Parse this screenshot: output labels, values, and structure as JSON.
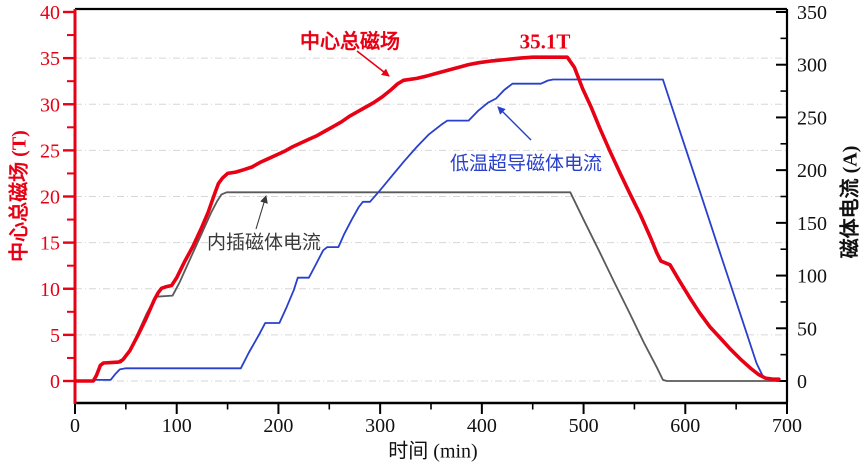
{
  "chart_data": {
    "type": "line",
    "title": "",
    "xlabel": "时间 (min)",
    "ylabel_left": "中心总磁场 (T)",
    "ylabel_right": "磁体电流 (A)",
    "x_range": [
      0,
      700
    ],
    "y_left_range": [
      0,
      40
    ],
    "y_right_range": [
      0,
      350
    ],
    "x_ticks": [
      0,
      100,
      200,
      300,
      400,
      500,
      600,
      700
    ],
    "x_minor_ticks": [
      50,
      150,
      250,
      350,
      450,
      550,
      650
    ],
    "y_left_ticks": [
      0,
      5,
      10,
      15,
      20,
      25,
      30,
      35,
      40
    ],
    "y_left_minor_ticks": [
      2.5,
      7.5,
      12.5,
      17.5,
      22.5,
      27.5,
      32.5,
      37.5
    ],
    "y_right_ticks": [
      0,
      50,
      100,
      150,
      200,
      250,
      300,
      350
    ],
    "y_right_minor_ticks": [
      25,
      75,
      125,
      175,
      225,
      275,
      325
    ],
    "grid": "horizontal dash-dot, light gray, at left-axis majors 0-35",
    "legend_position": "none (inline text annotations with arrows)",
    "series": [
      {
        "name": "内插磁体电流",
        "axis": "right",
        "color": "#5a5a5a",
        "width": 1.8,
        "points": [
          [
            0,
            0
          ],
          [
            18,
            0
          ],
          [
            21,
            5
          ],
          [
            24,
            14
          ],
          [
            27,
            17.5
          ],
          [
            45,
            17.5
          ],
          [
            49,
            21
          ],
          [
            55,
            31
          ],
          [
            62,
            46
          ],
          [
            70,
            63
          ],
          [
            76,
            74
          ],
          [
            80,
            80
          ],
          [
            96,
            81
          ],
          [
            103,
            94
          ],
          [
            110,
            109
          ],
          [
            118,
            126
          ],
          [
            126,
            143
          ],
          [
            134,
            160
          ],
          [
            140,
            171
          ],
          [
            144,
            177
          ],
          [
            149,
            179
          ],
          [
            487,
            179
          ],
          [
            500,
            153
          ],
          [
            515,
            124
          ],
          [
            530,
            94
          ],
          [
            545,
            65
          ],
          [
            560,
            35
          ],
          [
            572,
            13
          ],
          [
            578,
            1
          ],
          [
            582,
            0
          ],
          [
            692,
            0
          ]
        ]
      },
      {
        "name": "低温超导磁体电流",
        "axis": "right",
        "color": "#2840cc",
        "width": 1.8,
        "points": [
          [
            0,
            0
          ],
          [
            18,
            0
          ],
          [
            20,
            1
          ],
          [
            35,
            1
          ],
          [
            40,
            7
          ],
          [
            44,
            11
          ],
          [
            50,
            12
          ],
          [
            163,
            12
          ],
          [
            171,
            27
          ],
          [
            181,
            44
          ],
          [
            187,
            55
          ],
          [
            201,
            55
          ],
          [
            208,
            70
          ],
          [
            215,
            86
          ],
          [
            219,
            98
          ],
          [
            230,
            98
          ],
          [
            237,
            111
          ],
          [
            244,
            124
          ],
          [
            248,
            127
          ],
          [
            259,
            127
          ],
          [
            265,
            140
          ],
          [
            272,
            153
          ],
          [
            279,
            165
          ],
          [
            283,
            170
          ],
          [
            290,
            170
          ],
          [
            300,
            181
          ],
          [
            312,
            195
          ],
          [
            324,
            209
          ],
          [
            336,
            222
          ],
          [
            348,
            234
          ],
          [
            360,
            243
          ],
          [
            366,
            247
          ],
          [
            387,
            247
          ],
          [
            396,
            256
          ],
          [
            406,
            264
          ],
          [
            414,
            268
          ],
          [
            422,
            276
          ],
          [
            430,
            282
          ],
          [
            458,
            282
          ],
          [
            465,
            285
          ],
          [
            470,
            286
          ],
          [
            578,
            286
          ],
          [
            595,
            236
          ],
          [
            615,
            178
          ],
          [
            635,
            119
          ],
          [
            655,
            61
          ],
          [
            670,
            17
          ],
          [
            677,
            3
          ],
          [
            684,
            1
          ],
          [
            692,
            1
          ]
        ]
      },
      {
        "name": "中心总磁场",
        "axis": "left",
        "color": "#e80014",
        "width": 3.6,
        "points": [
          [
            0,
            0
          ],
          [
            18,
            0
          ],
          [
            21,
            0.6
          ],
          [
            25,
            1.7
          ],
          [
            28,
            1.95
          ],
          [
            43,
            2.05
          ],
          [
            47,
            2.3
          ],
          [
            54,
            3.3
          ],
          [
            62,
            5.0
          ],
          [
            70,
            6.8
          ],
          [
            78,
            8.8
          ],
          [
            82,
            9.6
          ],
          [
            85,
            10.05
          ],
          [
            89,
            10.2
          ],
          [
            95,
            10.35
          ],
          [
            100,
            11.2
          ],
          [
            108,
            13.0
          ],
          [
            116,
            14.6
          ],
          [
            124,
            16.5
          ],
          [
            131,
            18.3
          ],
          [
            137,
            20.2
          ],
          [
            141,
            21.4
          ],
          [
            145,
            22.0
          ],
          [
            150,
            22.5
          ],
          [
            158,
            22.65
          ],
          [
            166,
            22.9
          ],
          [
            174,
            23.2
          ],
          [
            182,
            23.7
          ],
          [
            190,
            24.1
          ],
          [
            198,
            24.5
          ],
          [
            206,
            24.9
          ],
          [
            214,
            25.4
          ],
          [
            222,
            25.8
          ],
          [
            230,
            26.2
          ],
          [
            238,
            26.6
          ],
          [
            246,
            27.1
          ],
          [
            254,
            27.6
          ],
          [
            262,
            28.1
          ],
          [
            270,
            28.7
          ],
          [
            278,
            29.2
          ],
          [
            286,
            29.7
          ],
          [
            294,
            30.2
          ],
          [
            302,
            30.8
          ],
          [
            310,
            31.5
          ],
          [
            317,
            32.2
          ],
          [
            323,
            32.6
          ],
          [
            336,
            32.8
          ],
          [
            347,
            33.1
          ],
          [
            357,
            33.4
          ],
          [
            367,
            33.7
          ],
          [
            377,
            34.0
          ],
          [
            387,
            34.3
          ],
          [
            397,
            34.5
          ],
          [
            410,
            34.7
          ],
          [
            424,
            34.85
          ],
          [
            438,
            35.0
          ],
          [
            450,
            35.1
          ],
          [
            484,
            35.1
          ],
          [
            491,
            34.0
          ],
          [
            499,
            31.7
          ],
          [
            507,
            29.8
          ],
          [
            516,
            27.4
          ],
          [
            526,
            24.9
          ],
          [
            536,
            22.5
          ],
          [
            546,
            20.2
          ],
          [
            556,
            18.0
          ],
          [
            566,
            15.5
          ],
          [
            572,
            13.9
          ],
          [
            576,
            13.0
          ],
          [
            585,
            12.6
          ],
          [
            594,
            10.9
          ],
          [
            604,
            9.1
          ],
          [
            614,
            7.4
          ],
          [
            624,
            5.9
          ],
          [
            634,
            4.7
          ],
          [
            644,
            3.5
          ],
          [
            654,
            2.4
          ],
          [
            664,
            1.4
          ],
          [
            672,
            0.7
          ],
          [
            679,
            0.3
          ],
          [
            686,
            0.2
          ],
          [
            692,
            0.2
          ]
        ]
      }
    ],
    "annotations": [
      {
        "id": "center-field-label",
        "text": "中心总磁场",
        "color": "#e80014",
        "bold": true,
        "size": 20,
        "x": 350,
        "y": 41
      },
      {
        "id": "peak-value-label",
        "text": "35.1T",
        "color": "#e80014",
        "bold": true,
        "size": 21,
        "x": 545,
        "y": 41
      },
      {
        "id": "sc-magnet-label",
        "text": "低温超导磁体电流",
        "color": "#2840cc",
        "bold": false,
        "size": 19,
        "x": 526,
        "y": 163
      },
      {
        "id": "insert-magnet-label",
        "text": "内插磁体电流",
        "color": "#3a3a3a",
        "bold": false,
        "size": 19,
        "x": 264,
        "y": 242
      }
    ],
    "arrows": [
      {
        "id": "center-field-arrow",
        "from": [
          357,
          51
        ],
        "to": [
          389,
          76
        ],
        "color": "#e80014",
        "width": 1.6
      },
      {
        "id": "sc-magnet-arrow",
        "from": [
          531,
          140
        ],
        "to": [
          498,
          107
        ],
        "color": "#2840cc",
        "width": 1.4
      },
      {
        "id": "insert-magnet-arrow",
        "from": [
          256,
          229
        ],
        "to": [
          266,
          196
        ],
        "color": "#3a3a3a",
        "width": 1.1
      }
    ]
  },
  "colors": {
    "field_red": "#e80014",
    "current_blue": "#2840cc",
    "current_gray": "#5a5a5a",
    "grid": "#d6d6d6",
    "axis": "#000000",
    "tick_label": "#111111",
    "background": "#ffffff"
  }
}
